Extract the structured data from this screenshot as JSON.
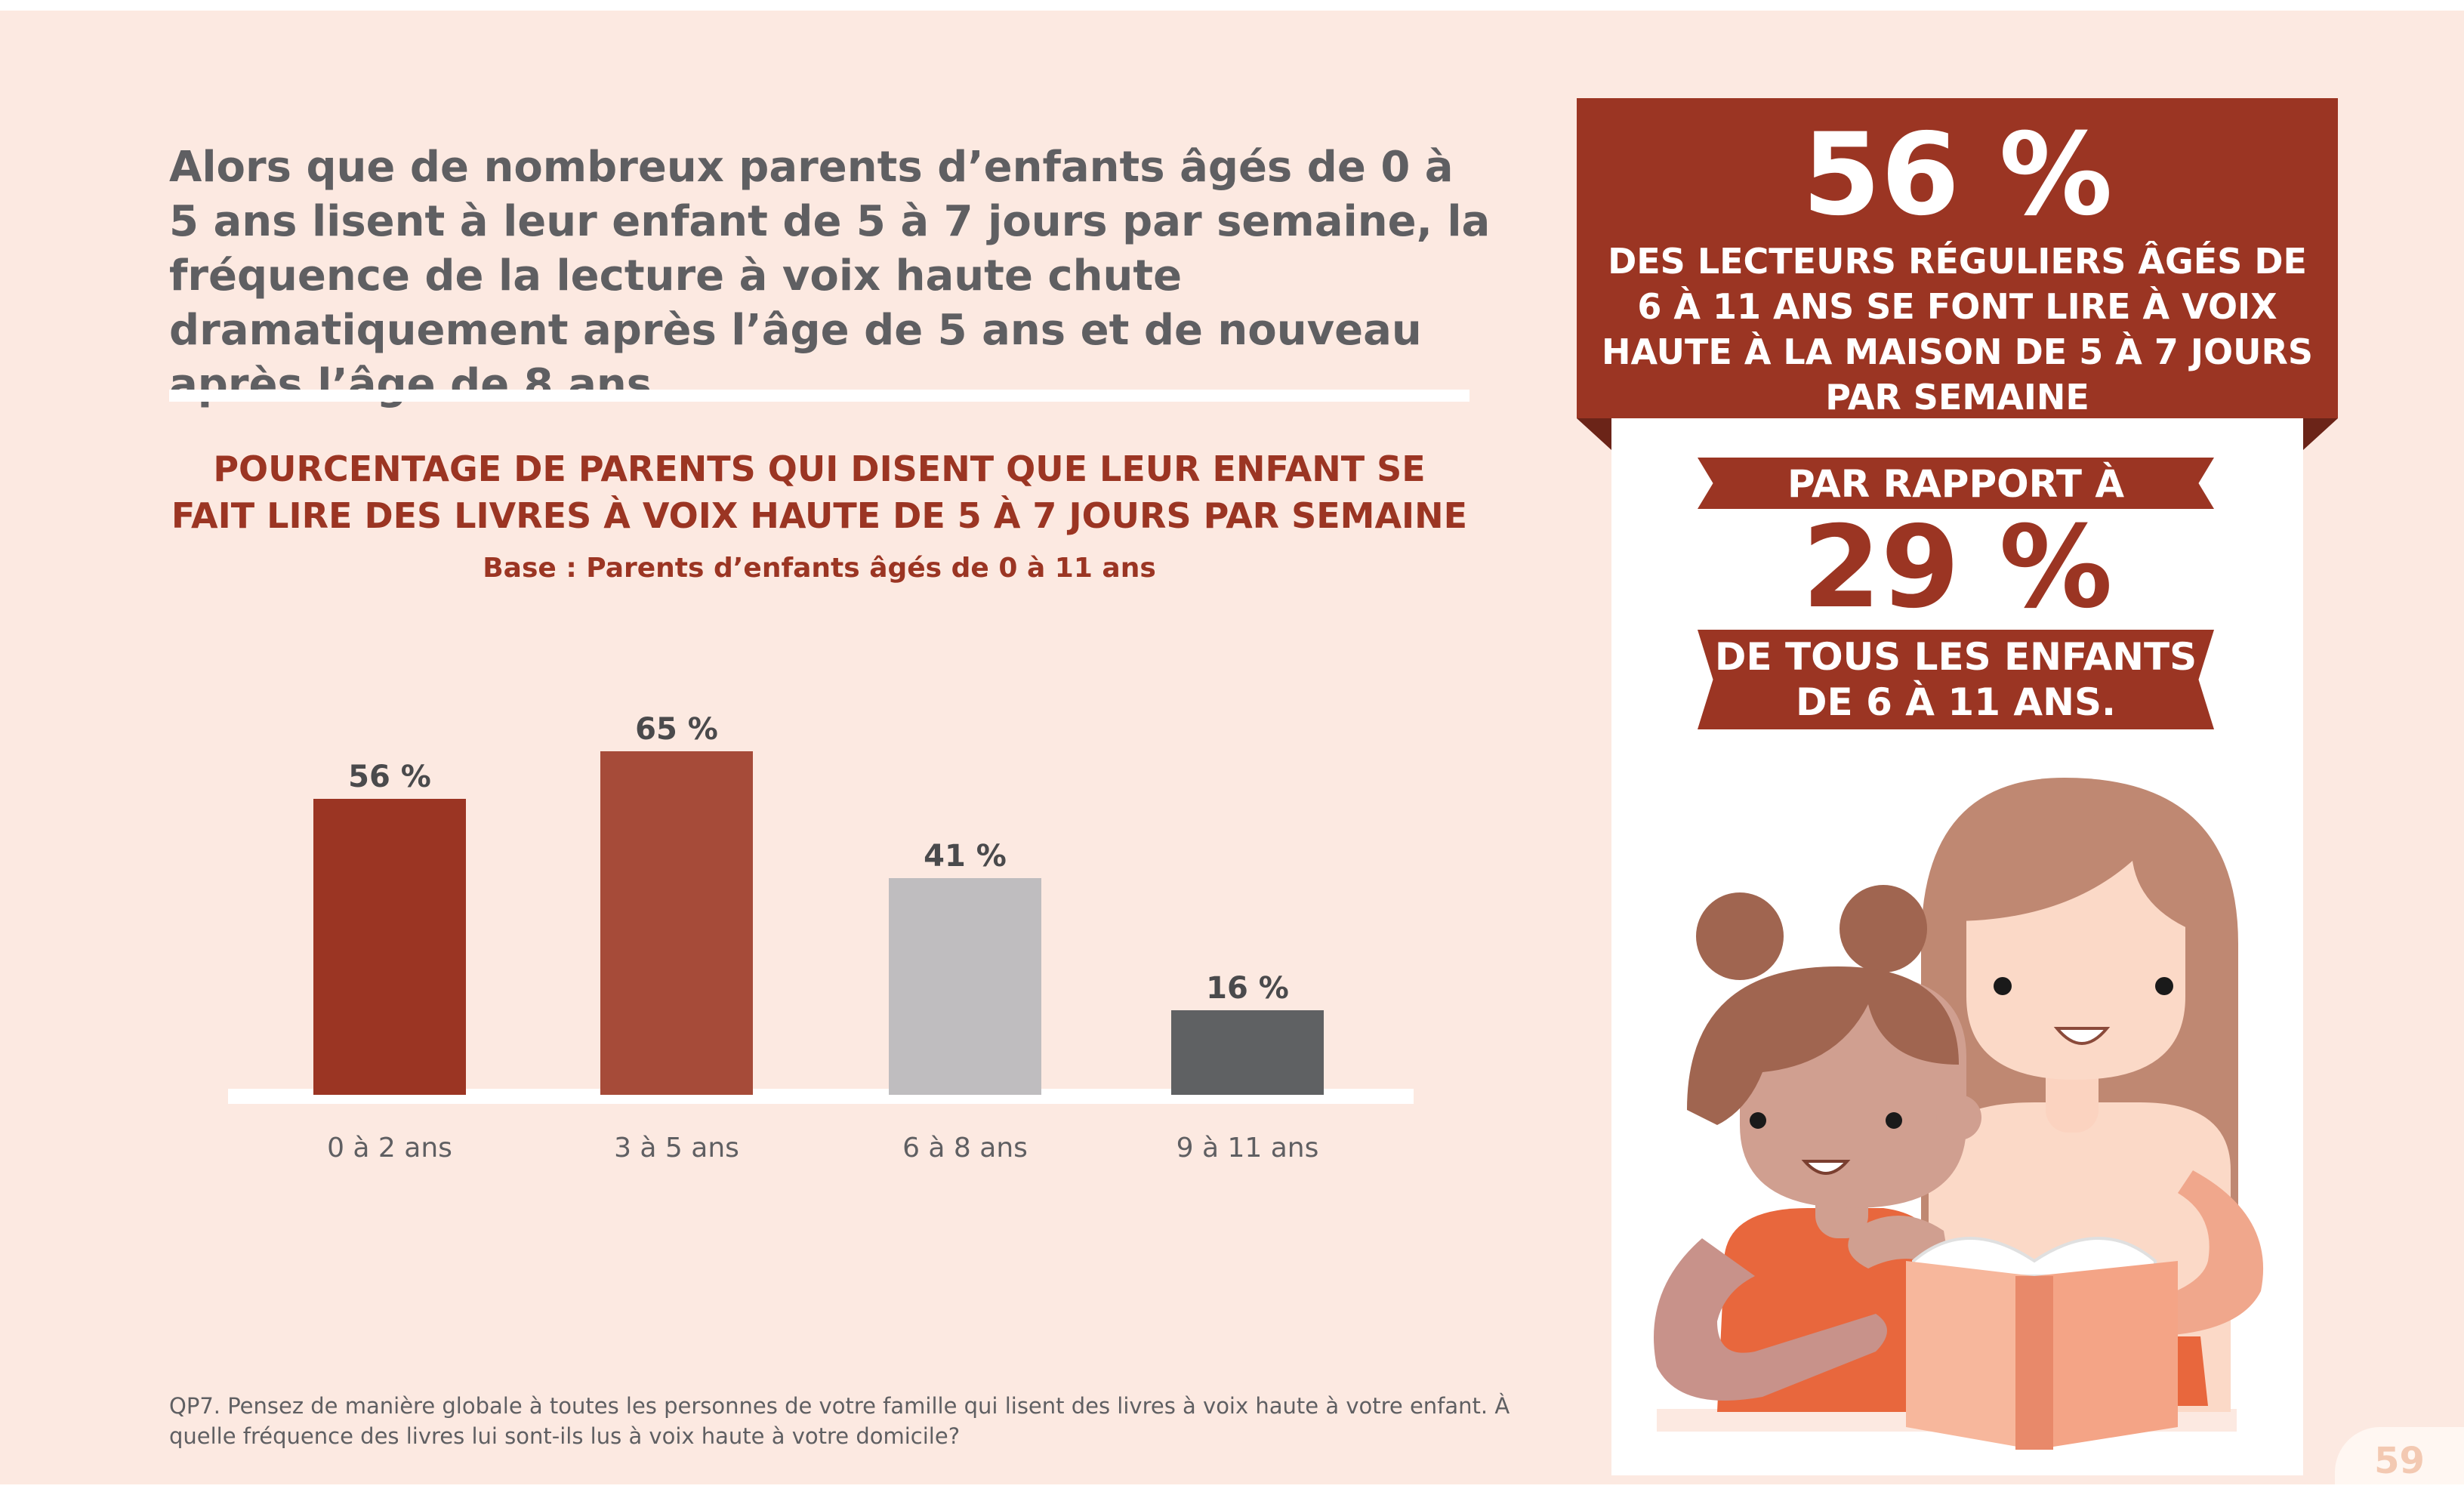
{
  "intro_text": "Alors que de nombreux parents d’enfants âgés de 0 à 5 ans lisent à leur enfant de 5 à 7 jours par semaine, la fréquence de la lecture à voix haute chute dramatiquement après l’âge de 5 ans et de nouveau après l’âge de 8 ans.",
  "chart_data": {
    "type": "bar",
    "title": "POURCENTAGE DE PARENTS QUI DISENT QUE LEUR ENFANT SE FAIT LIRE DES LIVRES À VOIX HAUTE DE 5 À 7 JOURS PAR SEMAINE",
    "subtitle": "Base : Parents d’enfants âgés de 0 à 11 ans",
    "categories": [
      "0 à 2 ans",
      "3 à 5 ans",
      "6 à 8 ans",
      "9 à 11 ans"
    ],
    "values": [
      56,
      65,
      41,
      16
    ],
    "value_labels": [
      "56 %",
      "65 %",
      "41 %",
      "16 %"
    ],
    "colors": [
      "#9b3523",
      "#a64b39",
      "#bfbdbf",
      "#5f6163"
    ],
    "ylim": [
      0,
      100
    ],
    "xlabel": "",
    "ylabel": "",
    "grid": false
  },
  "footnote": "QP7. Pensez de manière globale à toutes les personnes de votre famille qui lisent des livres à voix haute à votre enfant. À quelle fréquence des livres lui sont-ils lus à voix haute à votre domicile?",
  "callout": {
    "big_stat": "56 %",
    "big_desc": "DES LECTEURS RÉGULIERS ÂGÉS DE 6 À 11 ANS SE FONT LIRE À VOIX HAUTE À LA MAISON DE 5 À 7 JOURS PAR SEMAINE",
    "compare_label": "PAR RAPPORT À",
    "compare_stat": "29 %",
    "compare_desc": "DE TOUS LES ENFANTS DE 6 À 11 ANS."
  },
  "page_number": "59",
  "colors": {
    "background": "#fce9e1",
    "accent": "#9b3523",
    "text_gray": "#5f5f62"
  }
}
